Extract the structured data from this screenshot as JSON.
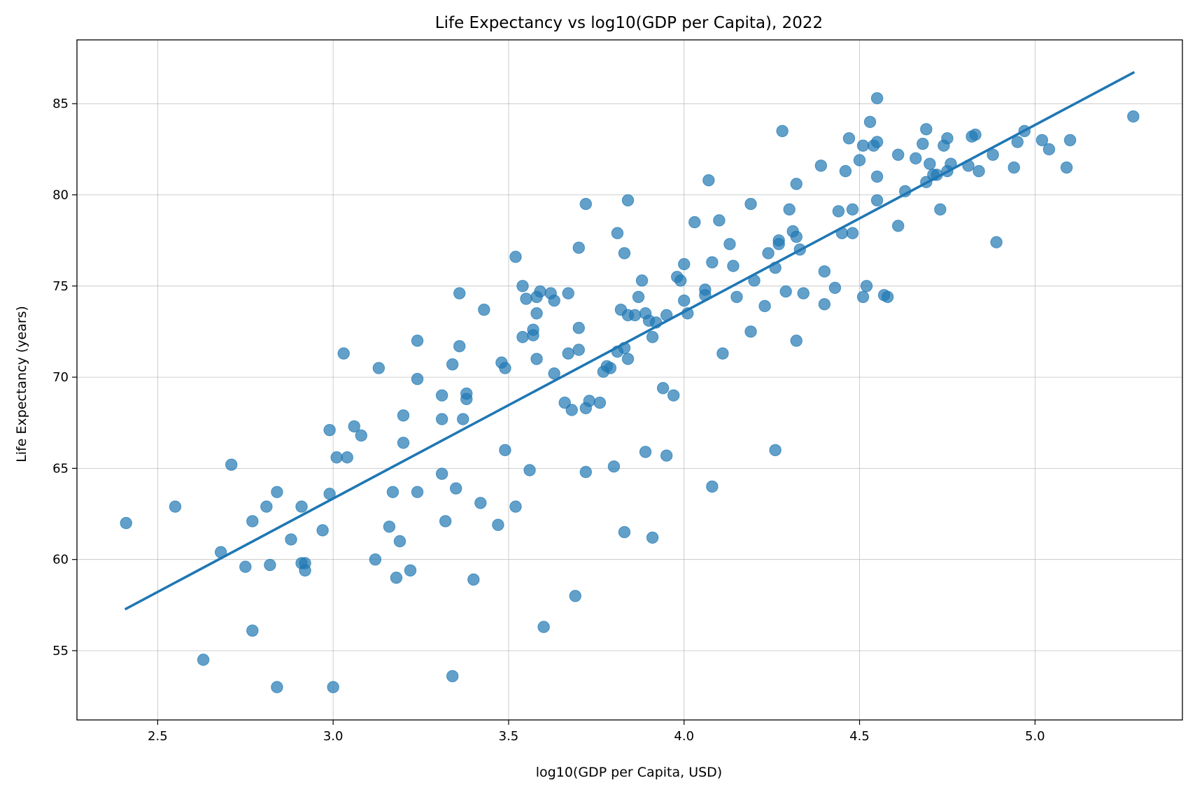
{
  "chart_data": {
    "type": "scatter",
    "title": "Life Expectancy vs log10(GDP per Capita), 2022",
    "xlabel": "log10(GDP per Capita, USD)",
    "ylabel": "Life Expectancy (years)",
    "xlim": [
      2.27,
      5.42
    ],
    "ylim": [
      51.2,
      88.5
    ],
    "xticks": [
      2.5,
      3.0,
      3.5,
      4.0,
      4.5,
      5.0
    ],
    "xtick_labels": [
      "2.5",
      "3.0",
      "3.5",
      "4.0",
      "4.5",
      "5.0"
    ],
    "yticks": [
      55,
      60,
      65,
      70,
      75,
      80,
      85
    ],
    "ytick_labels": [
      "55",
      "60",
      "65",
      "70",
      "75",
      "80",
      "85"
    ],
    "grid": true,
    "legend": "none",
    "colors": {
      "points": "#1f77b4",
      "line": "#1f77b4"
    },
    "fit_line": {
      "x": [
        2.41,
        5.28
      ],
      "y": [
        57.3,
        86.7
      ]
    },
    "points": [
      [
        2.41,
        62.0
      ],
      [
        2.55,
        62.9
      ],
      [
        2.63,
        54.5
      ],
      [
        2.68,
        60.4
      ],
      [
        2.71,
        65.2
      ],
      [
        2.75,
        59.6
      ],
      [
        2.77,
        62.1
      ],
      [
        2.77,
        56.1
      ],
      [
        2.81,
        62.9
      ],
      [
        2.82,
        59.7
      ],
      [
        2.84,
        63.7
      ],
      [
        2.84,
        53.0
      ],
      [
        2.88,
        61.1
      ],
      [
        2.91,
        62.9
      ],
      [
        2.91,
        59.8
      ],
      [
        2.92,
        59.8
      ],
      [
        2.92,
        59.4
      ],
      [
        2.97,
        61.6
      ],
      [
        2.99,
        67.1
      ],
      [
        2.99,
        63.6
      ],
      [
        3.0,
        53.0
      ],
      [
        3.01,
        65.6
      ],
      [
        3.03,
        71.3
      ],
      [
        3.04,
        65.6
      ],
      [
        3.06,
        67.3
      ],
      [
        3.08,
        66.8
      ],
      [
        3.12,
        60.0
      ],
      [
        3.13,
        70.5
      ],
      [
        3.16,
        61.8
      ],
      [
        3.17,
        63.7
      ],
      [
        3.18,
        59.0
      ],
      [
        3.19,
        61.0
      ],
      [
        3.2,
        67.9
      ],
      [
        3.2,
        66.4
      ],
      [
        3.22,
        59.4
      ],
      [
        3.24,
        72.0
      ],
      [
        3.24,
        63.7
      ],
      [
        3.24,
        69.9
      ],
      [
        3.31,
        69.0
      ],
      [
        3.31,
        67.7
      ],
      [
        3.31,
        64.7
      ],
      [
        3.32,
        62.1
      ],
      [
        3.34,
        70.7
      ],
      [
        3.34,
        53.6
      ],
      [
        3.35,
        63.9
      ],
      [
        3.36,
        74.6
      ],
      [
        3.36,
        71.7
      ],
      [
        3.37,
        67.7
      ],
      [
        3.38,
        69.1
      ],
      [
        3.38,
        68.8
      ],
      [
        3.4,
        58.9
      ],
      [
        3.42,
        63.1
      ],
      [
        3.43,
        73.7
      ],
      [
        3.47,
        61.9
      ],
      [
        3.48,
        70.8
      ],
      [
        3.49,
        66.0
      ],
      [
        3.49,
        70.5
      ],
      [
        3.52,
        62.9
      ],
      [
        3.52,
        76.6
      ],
      [
        3.54,
        75.0
      ],
      [
        3.54,
        72.2
      ],
      [
        3.55,
        74.3
      ],
      [
        3.56,
        64.9
      ],
      [
        3.57,
        72.3
      ],
      [
        3.57,
        72.6
      ],
      [
        3.58,
        73.5
      ],
      [
        3.58,
        71.0
      ],
      [
        3.58,
        74.4
      ],
      [
        3.59,
        74.7
      ],
      [
        3.6,
        56.3
      ],
      [
        3.62,
        74.6
      ],
      [
        3.63,
        74.2
      ],
      [
        3.63,
        70.2
      ],
      [
        3.66,
        68.6
      ],
      [
        3.67,
        74.6
      ],
      [
        3.67,
        71.3
      ],
      [
        3.68,
        68.2
      ],
      [
        3.69,
        58.0
      ],
      [
        3.7,
        77.1
      ],
      [
        3.7,
        72.7
      ],
      [
        3.7,
        71.5
      ],
      [
        3.72,
        79.5
      ],
      [
        3.72,
        64.8
      ],
      [
        3.72,
        68.3
      ],
      [
        3.73,
        68.7
      ],
      [
        3.76,
        68.6
      ],
      [
        3.77,
        70.3
      ],
      [
        3.78,
        70.6
      ],
      [
        3.79,
        70.5
      ],
      [
        3.8,
        65.1
      ],
      [
        3.81,
        77.9
      ],
      [
        3.81,
        71.4
      ],
      [
        3.82,
        73.7
      ],
      [
        3.83,
        76.8
      ],
      [
        3.83,
        71.6
      ],
      [
        3.83,
        61.5
      ],
      [
        3.84,
        79.7
      ],
      [
        3.84,
        73.4
      ],
      [
        3.84,
        71.0
      ],
      [
        3.86,
        73.4
      ],
      [
        3.87,
        74.4
      ],
      [
        3.88,
        75.3
      ],
      [
        3.89,
        73.5
      ],
      [
        3.89,
        65.9
      ],
      [
        3.9,
        73.1
      ],
      [
        3.91,
        61.2
      ],
      [
        3.91,
        72.2
      ],
      [
        3.92,
        73.0
      ],
      [
        3.94,
        69.4
      ],
      [
        3.95,
        65.7
      ],
      [
        3.95,
        73.4
      ],
      [
        3.97,
        69.0
      ],
      [
        3.98,
        75.5
      ],
      [
        3.99,
        75.3
      ],
      [
        4.0,
        76.2
      ],
      [
        4.0,
        74.2
      ],
      [
        4.01,
        73.5
      ],
      [
        4.03,
        78.5
      ],
      [
        4.06,
        74.8
      ],
      [
        4.06,
        74.5
      ],
      [
        4.07,
        80.8
      ],
      [
        4.08,
        76.3
      ],
      [
        4.08,
        64.0
      ],
      [
        4.1,
        78.6
      ],
      [
        4.11,
        71.3
      ],
      [
        4.13,
        77.3
      ],
      [
        4.14,
        76.1
      ],
      [
        4.15,
        74.4
      ],
      [
        4.19,
        79.5
      ],
      [
        4.19,
        72.5
      ],
      [
        4.2,
        75.3
      ],
      [
        4.23,
        73.9
      ],
      [
        4.24,
        76.8
      ],
      [
        4.26,
        66.0
      ],
      [
        4.26,
        76.0
      ],
      [
        4.27,
        77.5
      ],
      [
        4.27,
        77.3
      ],
      [
        4.28,
        83.5
      ],
      [
        4.29,
        74.7
      ],
      [
        4.3,
        79.2
      ],
      [
        4.31,
        78.0
      ],
      [
        4.32,
        77.7
      ],
      [
        4.32,
        72.0
      ],
      [
        4.32,
        80.6
      ],
      [
        4.33,
        77.0
      ],
      [
        4.34,
        74.6
      ],
      [
        4.39,
        81.6
      ],
      [
        4.4,
        75.8
      ],
      [
        4.4,
        74.0
      ],
      [
        4.43,
        74.9
      ],
      [
        4.44,
        79.1
      ],
      [
        4.45,
        77.9
      ],
      [
        4.46,
        81.3
      ],
      [
        4.47,
        83.1
      ],
      [
        4.48,
        79.2
      ],
      [
        4.48,
        77.9
      ],
      [
        4.5,
        81.9
      ],
      [
        4.51,
        74.4
      ],
      [
        4.51,
        82.7
      ],
      [
        4.52,
        75.0
      ],
      [
        4.53,
        84.0
      ],
      [
        4.54,
        82.7
      ],
      [
        4.55,
        82.9
      ],
      [
        4.55,
        85.3
      ],
      [
        4.55,
        79.7
      ],
      [
        4.55,
        81.0
      ],
      [
        4.57,
        74.5
      ],
      [
        4.58,
        74.4
      ],
      [
        4.61,
        78.3
      ],
      [
        4.61,
        82.2
      ],
      [
        4.63,
        80.2
      ],
      [
        4.66,
        82.0
      ],
      [
        4.68,
        82.8
      ],
      [
        4.69,
        83.6
      ],
      [
        4.69,
        80.7
      ],
      [
        4.7,
        81.7
      ],
      [
        4.71,
        81.1
      ],
      [
        4.72,
        81.1
      ],
      [
        4.73,
        79.2
      ],
      [
        4.74,
        82.7
      ],
      [
        4.75,
        81.3
      ],
      [
        4.75,
        83.1
      ],
      [
        4.76,
        81.7
      ],
      [
        4.81,
        81.6
      ],
      [
        4.82,
        83.2
      ],
      [
        4.83,
        83.3
      ],
      [
        4.84,
        81.3
      ],
      [
        4.88,
        82.2
      ],
      [
        4.89,
        77.4
      ],
      [
        4.94,
        81.5
      ],
      [
        4.95,
        82.9
      ],
      [
        4.97,
        83.5
      ],
      [
        5.02,
        83.0
      ],
      [
        5.04,
        82.5
      ],
      [
        5.09,
        81.5
      ],
      [
        5.1,
        83.0
      ],
      [
        5.28,
        84.3
      ]
    ]
  }
}
